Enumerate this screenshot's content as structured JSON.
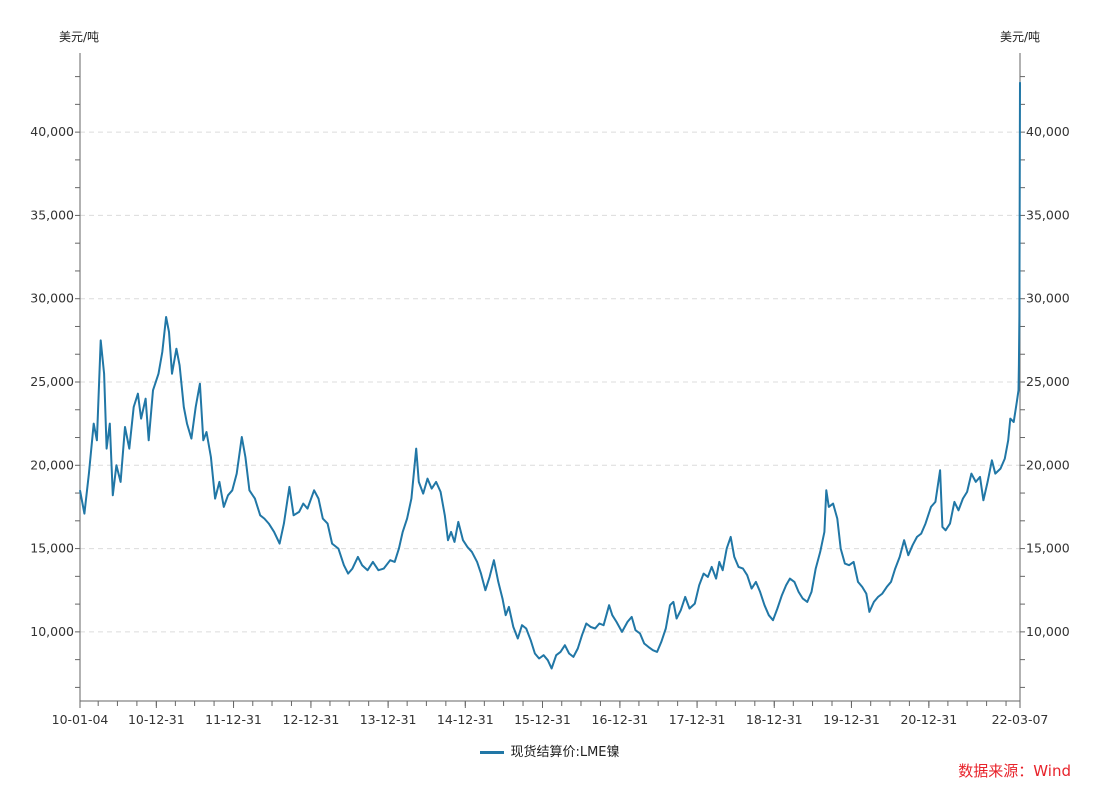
{
  "chart_data": {
    "type": "line",
    "title": "",
    "y_unit_left": "美元/吨",
    "y_unit_right": "美元/吨",
    "ylim": [
      5850,
      44750
    ],
    "y_ticks": [
      10000,
      15000,
      20000,
      25000,
      30000,
      35000,
      40000
    ],
    "y_tick_labels": [
      "10,000",
      "15,000",
      "20,000",
      "25,000",
      "30,000",
      "35,000",
      "40,000"
    ],
    "xlim": [
      "2010-01-04",
      "2022-03-07"
    ],
    "x_ticks": [
      "2010-01-04",
      "2010-12-31",
      "2011-12-31",
      "2012-12-31",
      "2013-12-31",
      "2014-12-31",
      "2015-12-31",
      "2016-12-31",
      "2017-12-31",
      "2018-12-31",
      "2019-12-31",
      "2020-12-31",
      "2022-03-07"
    ],
    "x_tick_labels": [
      "10-01-04",
      "10-12-31",
      "11-12-31",
      "12-12-31",
      "13-12-31",
      "14-12-31",
      "15-12-31",
      "16-12-31",
      "17-12-31",
      "18-12-31",
      "19-12-31",
      "20-12-31",
      "22-03-07"
    ],
    "grid": "horizontal dashed",
    "legend_position": "bottom-center",
    "series": [
      {
        "name": "现货结算价:LME镍",
        "color": "#2177a6",
        "points": [
          [
            "2010-01-04",
            18500
          ],
          [
            "2010-01-25",
            17100
          ],
          [
            "2010-02-15",
            19500
          ],
          [
            "2010-03-10",
            22500
          ],
          [
            "2010-03-25",
            21500
          ],
          [
            "2010-04-12",
            27500
          ],
          [
            "2010-04-28",
            25500
          ],
          [
            "2010-05-10",
            21000
          ],
          [
            "2010-05-25",
            22500
          ],
          [
            "2010-06-08",
            18200
          ],
          [
            "2010-06-25",
            20000
          ],
          [
            "2010-07-15",
            19000
          ],
          [
            "2010-08-05",
            22300
          ],
          [
            "2010-08-25",
            21000
          ],
          [
            "2010-09-15",
            23500
          ],
          [
            "2010-10-05",
            24300
          ],
          [
            "2010-10-20",
            22800
          ],
          [
            "2010-11-10",
            24000
          ],
          [
            "2010-11-25",
            21500
          ],
          [
            "2010-12-15",
            24500
          ],
          [
            "2011-01-10",
            25500
          ],
          [
            "2011-01-28",
            26800
          ],
          [
            "2011-02-15",
            28900
          ],
          [
            "2011-03-01",
            28000
          ],
          [
            "2011-03-15",
            25500
          ],
          [
            "2011-04-05",
            27000
          ],
          [
            "2011-04-20",
            26000
          ],
          [
            "2011-05-10",
            23500
          ],
          [
            "2011-05-25",
            22500
          ],
          [
            "2011-06-15",
            21600
          ],
          [
            "2011-07-05",
            23500
          ],
          [
            "2011-07-25",
            24900
          ],
          [
            "2011-08-10",
            21500
          ],
          [
            "2011-08-25",
            22000
          ],
          [
            "2011-09-15",
            20500
          ],
          [
            "2011-10-05",
            18000
          ],
          [
            "2011-10-25",
            19000
          ],
          [
            "2011-11-15",
            17500
          ],
          [
            "2011-12-05",
            18200
          ],
          [
            "2011-12-25",
            18500
          ],
          [
            "2012-01-15",
            19500
          ],
          [
            "2012-02-08",
            21700
          ],
          [
            "2012-02-25",
            20500
          ],
          [
            "2012-03-15",
            18500
          ],
          [
            "2012-04-10",
            18000
          ],
          [
            "2012-05-05",
            17000
          ],
          [
            "2012-05-25",
            16800
          ],
          [
            "2012-06-15",
            16500
          ],
          [
            "2012-07-10",
            16000
          ],
          [
            "2012-08-05",
            15300
          ],
          [
            "2012-08-25",
            16500
          ],
          [
            "2012-09-20",
            18700
          ],
          [
            "2012-10-10",
            17000
          ],
          [
            "2012-11-05",
            17200
          ],
          [
            "2012-11-25",
            17700
          ],
          [
            "2012-12-15",
            17400
          ],
          [
            "2013-01-15",
            18500
          ],
          [
            "2013-02-05",
            18000
          ],
          [
            "2013-02-25",
            16800
          ],
          [
            "2013-03-20",
            16500
          ],
          [
            "2013-04-10",
            15300
          ],
          [
            "2013-05-10",
            15000
          ],
          [
            "2013-06-05",
            14000
          ],
          [
            "2013-06-25",
            13500
          ],
          [
            "2013-07-15",
            13800
          ],
          [
            "2013-08-10",
            14500
          ],
          [
            "2013-08-30",
            14000
          ],
          [
            "2013-09-25",
            13700
          ],
          [
            "2013-10-20",
            14200
          ],
          [
            "2013-11-15",
            13700
          ],
          [
            "2013-12-10",
            13800
          ],
          [
            "2014-01-10",
            14300
          ],
          [
            "2014-01-31",
            14200
          ],
          [
            "2014-02-20",
            15000
          ],
          [
            "2014-03-10",
            16000
          ],
          [
            "2014-03-31",
            16800
          ],
          [
            "2014-04-20",
            18000
          ],
          [
            "2014-05-13",
            21000
          ],
          [
            "2014-05-25",
            19000
          ],
          [
            "2014-06-15",
            18300
          ],
          [
            "2014-07-05",
            19200
          ],
          [
            "2014-07-25",
            18600
          ],
          [
            "2014-08-15",
            19000
          ],
          [
            "2014-09-05",
            18400
          ],
          [
            "2014-09-25",
            17000
          ],
          [
            "2014-10-10",
            15500
          ],
          [
            "2014-10-25",
            16000
          ],
          [
            "2014-11-10",
            15400
          ],
          [
            "2014-11-28",
            16600
          ],
          [
            "2014-12-20",
            15500
          ],
          [
            "2015-01-10",
            15100
          ],
          [
            "2015-01-31",
            14800
          ],
          [
            "2015-02-25",
            14200
          ],
          [
            "2015-03-15",
            13500
          ],
          [
            "2015-04-05",
            12500
          ],
          [
            "2015-04-25",
            13300
          ],
          [
            "2015-05-15",
            14300
          ],
          [
            "2015-06-05",
            13000
          ],
          [
            "2015-06-25",
            12000
          ],
          [
            "2015-07-10",
            11000
          ],
          [
            "2015-07-25",
            11500
          ],
          [
            "2015-08-15",
            10300
          ],
          [
            "2015-09-05",
            9600
          ],
          [
            "2015-09-25",
            10400
          ],
          [
            "2015-10-15",
            10200
          ],
          [
            "2015-11-05",
            9500
          ],
          [
            "2015-11-25",
            8700
          ],
          [
            "2015-12-15",
            8400
          ],
          [
            "2016-01-05",
            8600
          ],
          [
            "2016-01-25",
            8300
          ],
          [
            "2016-02-12",
            7800
          ],
          [
            "2016-03-05",
            8600
          ],
          [
            "2016-03-25",
            8800
          ],
          [
            "2016-04-15",
            9200
          ],
          [
            "2016-05-05",
            8700
          ],
          [
            "2016-05-25",
            8500
          ],
          [
            "2016-06-15",
            9000
          ],
          [
            "2016-07-05",
            9800
          ],
          [
            "2016-07-25",
            10500
          ],
          [
            "2016-08-15",
            10300
          ],
          [
            "2016-09-05",
            10200
          ],
          [
            "2016-09-25",
            10500
          ],
          [
            "2016-10-15",
            10400
          ],
          [
            "2016-11-10",
            11600
          ],
          [
            "2016-11-25",
            11000
          ],
          [
            "2016-12-15",
            10600
          ],
          [
            "2017-01-10",
            10000
          ],
          [
            "2017-02-05",
            10600
          ],
          [
            "2017-02-25",
            10900
          ],
          [
            "2017-03-15",
            10100
          ],
          [
            "2017-04-05",
            9900
          ],
          [
            "2017-04-25",
            9300
          ],
          [
            "2017-05-15",
            9100
          ],
          [
            "2017-06-05",
            8900
          ],
          [
            "2017-06-25",
            8800
          ],
          [
            "2017-07-15",
            9400
          ],
          [
            "2017-08-05",
            10200
          ],
          [
            "2017-08-25",
            11600
          ],
          [
            "2017-09-10",
            11800
          ],
          [
            "2017-09-25",
            10800
          ],
          [
            "2017-10-15",
            11300
          ],
          [
            "2017-11-05",
            12100
          ],
          [
            "2017-11-25",
            11400
          ],
          [
            "2017-12-20",
            11700
          ],
          [
            "2018-01-10",
            12800
          ],
          [
            "2018-01-31",
            13500
          ],
          [
            "2018-02-20",
            13300
          ],
          [
            "2018-03-10",
            13900
          ],
          [
            "2018-03-31",
            13200
          ],
          [
            "2018-04-15",
            14200
          ],
          [
            "2018-05-01",
            13700
          ],
          [
            "2018-05-20",
            15000
          ],
          [
            "2018-06-08",
            15700
          ],
          [
            "2018-06-25",
            14500
          ],
          [
            "2018-07-15",
            13900
          ],
          [
            "2018-08-05",
            13800
          ],
          [
            "2018-08-25",
            13400
          ],
          [
            "2018-09-15",
            12600
          ],
          [
            "2018-10-05",
            13000
          ],
          [
            "2018-10-25",
            12400
          ],
          [
            "2018-11-15",
            11600
          ],
          [
            "2018-12-05",
            11000
          ],
          [
            "2018-12-25",
            10700
          ],
          [
            "2019-01-15",
            11400
          ],
          [
            "2019-02-05",
            12200
          ],
          [
            "2019-02-25",
            12800
          ],
          [
            "2019-03-15",
            13200
          ],
          [
            "2019-04-05",
            13000
          ],
          [
            "2019-04-25",
            12400
          ],
          [
            "2019-05-15",
            12000
          ],
          [
            "2019-06-05",
            11800
          ],
          [
            "2019-06-25",
            12400
          ],
          [
            "2019-07-15",
            13800
          ],
          [
            "2019-08-05",
            14800
          ],
          [
            "2019-08-25",
            16000
          ],
          [
            "2019-09-03",
            18500
          ],
          [
            "2019-09-15",
            17500
          ],
          [
            "2019-10-05",
            17700
          ],
          [
            "2019-10-25",
            16800
          ],
          [
            "2019-11-10",
            15000
          ],
          [
            "2019-11-30",
            14100
          ],
          [
            "2019-12-20",
            14000
          ],
          [
            "2020-01-10",
            14200
          ],
          [
            "2020-01-31",
            13000
          ],
          [
            "2020-02-20",
            12700
          ],
          [
            "2020-03-10",
            12300
          ],
          [
            "2020-03-25",
            11200
          ],
          [
            "2020-04-15",
            11800
          ],
          [
            "2020-05-05",
            12100
          ],
          [
            "2020-05-25",
            12300
          ],
          [
            "2020-06-15",
            12700
          ],
          [
            "2020-07-05",
            13000
          ],
          [
            "2020-07-25",
            13800
          ],
          [
            "2020-08-15",
            14500
          ],
          [
            "2020-09-05",
            15500
          ],
          [
            "2020-09-25",
            14600
          ],
          [
            "2020-10-15",
            15200
          ],
          [
            "2020-11-05",
            15700
          ],
          [
            "2020-11-25",
            15900
          ],
          [
            "2020-12-15",
            16500
          ],
          [
            "2021-01-10",
            17500
          ],
          [
            "2021-01-31",
            17800
          ],
          [
            "2021-02-22",
            19700
          ],
          [
            "2021-03-05",
            16300
          ],
          [
            "2021-03-20",
            16100
          ],
          [
            "2021-04-10",
            16500
          ],
          [
            "2021-05-01",
            17800
          ],
          [
            "2021-05-20",
            17300
          ],
          [
            "2021-06-10",
            18000
          ],
          [
            "2021-06-30",
            18400
          ],
          [
            "2021-07-20",
            19500
          ],
          [
            "2021-08-10",
            19000
          ],
          [
            "2021-08-30",
            19300
          ],
          [
            "2021-09-15",
            17900
          ],
          [
            "2021-10-05",
            19000
          ],
          [
            "2021-10-25",
            20300
          ],
          [
            "2021-11-10",
            19500
          ],
          [
            "2021-12-05",
            19800
          ],
          [
            "2021-12-25",
            20400
          ],
          [
            "2022-01-10",
            21500
          ],
          [
            "2022-01-20",
            22800
          ],
          [
            "2022-02-05",
            22600
          ],
          [
            "2022-02-20",
            23800
          ],
          [
            "2022-02-28",
            24500
          ],
          [
            "2022-03-02",
            26000
          ],
          [
            "2022-03-04",
            29000
          ],
          [
            "2022-03-07",
            42995
          ]
        ]
      }
    ]
  },
  "source": {
    "text": "数据来源：Wind",
    "color": "#e8232b"
  }
}
